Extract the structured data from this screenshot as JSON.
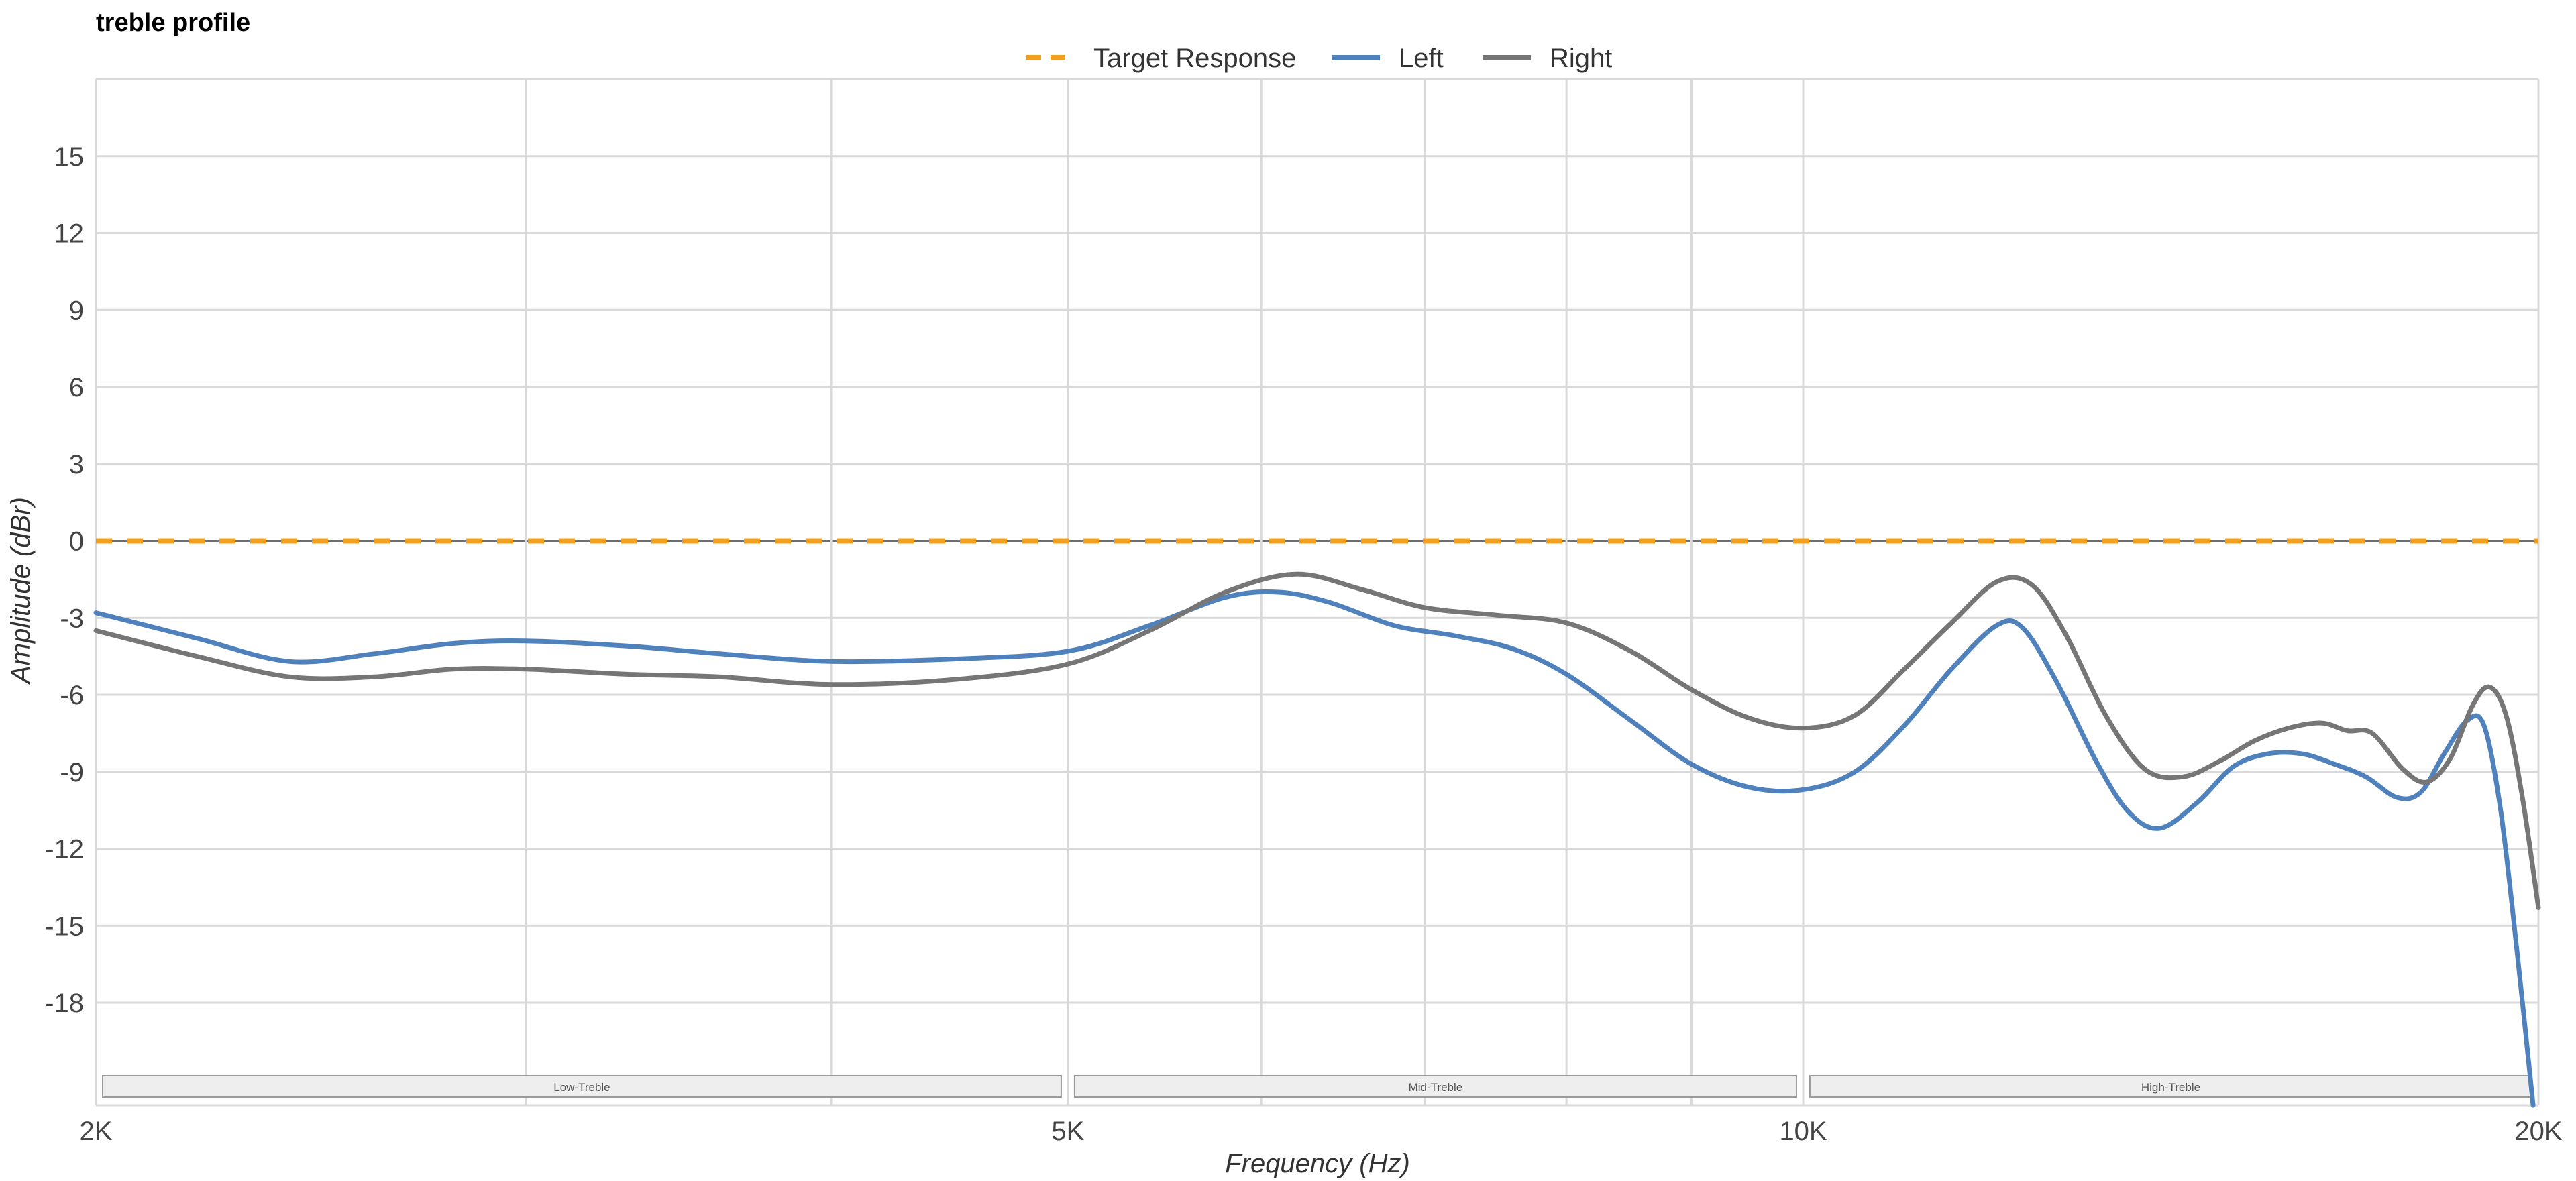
{
  "chart_data": {
    "type": "line",
    "title": "treble profile",
    "xlabel": "Frequency (Hz)",
    "ylabel": "Amplitude (dBr)",
    "x_scale": "log",
    "xlim": [
      2000,
      20000
    ],
    "ylim": [
      -22,
      18
    ],
    "y_ticks": [
      15,
      12,
      9,
      6,
      3,
      0,
      -3,
      -6,
      -9,
      -12,
      -15,
      -18
    ],
    "x_tick_labels": [
      {
        "value": 2000,
        "label": "2K"
      },
      {
        "value": 5000,
        "label": "5K"
      },
      {
        "value": 10000,
        "label": "10K"
      },
      {
        "value": 20000,
        "label": "20K"
      }
    ],
    "x_gridlines": [
      2000,
      3000,
      4000,
      5000,
      6000,
      7000,
      8000,
      9000,
      10000,
      20000
    ],
    "grid": true,
    "legend_position": "top-center",
    "bands": [
      {
        "label": "Low-Treble",
        "from": 2000,
        "to": 5000
      },
      {
        "label": "Mid-Treble",
        "from": 5000,
        "to": 10000
      },
      {
        "label": "High-Treble",
        "from": 10000,
        "to": 20000
      }
    ],
    "series": [
      {
        "name": "Target Response",
        "color": "#f0a020",
        "style": "dashed",
        "points": [
          [
            2000,
            0
          ],
          [
            20000,
            0
          ]
        ]
      },
      {
        "name": "Left",
        "color": "#4f81bd",
        "style": "solid",
        "points": [
          [
            2000,
            -2.8
          ],
          [
            2200,
            -3.8
          ],
          [
            2400,
            -4.7
          ],
          [
            2600,
            -4.4
          ],
          [
            2800,
            -4.0
          ],
          [
            3000,
            -3.9
          ],
          [
            3300,
            -4.1
          ],
          [
            3600,
            -4.4
          ],
          [
            4000,
            -4.7
          ],
          [
            4500,
            -4.6
          ],
          [
            5000,
            -4.3
          ],
          [
            5400,
            -3.3
          ],
          [
            5800,
            -2.2
          ],
          [
            6100,
            -2.0
          ],
          [
            6400,
            -2.4
          ],
          [
            6800,
            -3.3
          ],
          [
            7200,
            -3.7
          ],
          [
            7600,
            -4.2
          ],
          [
            8000,
            -5.2
          ],
          [
            8500,
            -7.0
          ],
          [
            9000,
            -8.7
          ],
          [
            9500,
            -9.6
          ],
          [
            10000,
            -9.7
          ],
          [
            10500,
            -9.0
          ],
          [
            11000,
            -7.2
          ],
          [
            11500,
            -5.0
          ],
          [
            12000,
            -3.3
          ],
          [
            12300,
            -3.4
          ],
          [
            12700,
            -5.5
          ],
          [
            13200,
            -8.7
          ],
          [
            13600,
            -10.6
          ],
          [
            14000,
            -11.2
          ],
          [
            14500,
            -10.2
          ],
          [
            15000,
            -8.8
          ],
          [
            15500,
            -8.3
          ],
          [
            16000,
            -8.3
          ],
          [
            16500,
            -8.7
          ],
          [
            17000,
            -9.2
          ],
          [
            17500,
            -10.0
          ],
          [
            17900,
            -9.8
          ],
          [
            18300,
            -8.3
          ],
          [
            18700,
            -7.0
          ],
          [
            19000,
            -7.2
          ],
          [
            19300,
            -10.5
          ],
          [
            19600,
            -16.0
          ],
          [
            19900,
            -22.0
          ]
        ]
      },
      {
        "name": "Right",
        "color": "#767676",
        "style": "solid",
        "points": [
          [
            2000,
            -3.5
          ],
          [
            2200,
            -4.5
          ],
          [
            2400,
            -5.3
          ],
          [
            2600,
            -5.3
          ],
          [
            2800,
            -5.0
          ],
          [
            3000,
            -5.0
          ],
          [
            3300,
            -5.2
          ],
          [
            3600,
            -5.3
          ],
          [
            4000,
            -5.6
          ],
          [
            4500,
            -5.4
          ],
          [
            5000,
            -4.8
          ],
          [
            5400,
            -3.5
          ],
          [
            5800,
            -2.0
          ],
          [
            6200,
            -1.3
          ],
          [
            6600,
            -1.9
          ],
          [
            7000,
            -2.6
          ],
          [
            7500,
            -2.9
          ],
          [
            8000,
            -3.2
          ],
          [
            8500,
            -4.3
          ],
          [
            9000,
            -5.8
          ],
          [
            9500,
            -6.9
          ],
          [
            10000,
            -7.3
          ],
          [
            10500,
            -6.8
          ],
          [
            11000,
            -5.0
          ],
          [
            11500,
            -3.2
          ],
          [
            12000,
            -1.6
          ],
          [
            12400,
            -1.7
          ],
          [
            12800,
            -3.6
          ],
          [
            13300,
            -6.8
          ],
          [
            13800,
            -8.9
          ],
          [
            14300,
            -9.2
          ],
          [
            14800,
            -8.6
          ],
          [
            15300,
            -7.8
          ],
          [
            15800,
            -7.3
          ],
          [
            16300,
            -7.1
          ],
          [
            16700,
            -7.4
          ],
          [
            17100,
            -7.5
          ],
          [
            17600,
            -8.9
          ],
          [
            18000,
            -9.4
          ],
          [
            18400,
            -8.5
          ],
          [
            18800,
            -6.4
          ],
          [
            19100,
            -5.7
          ],
          [
            19400,
            -6.8
          ],
          [
            19700,
            -10.0
          ],
          [
            20000,
            -14.3
          ]
        ]
      }
    ]
  }
}
